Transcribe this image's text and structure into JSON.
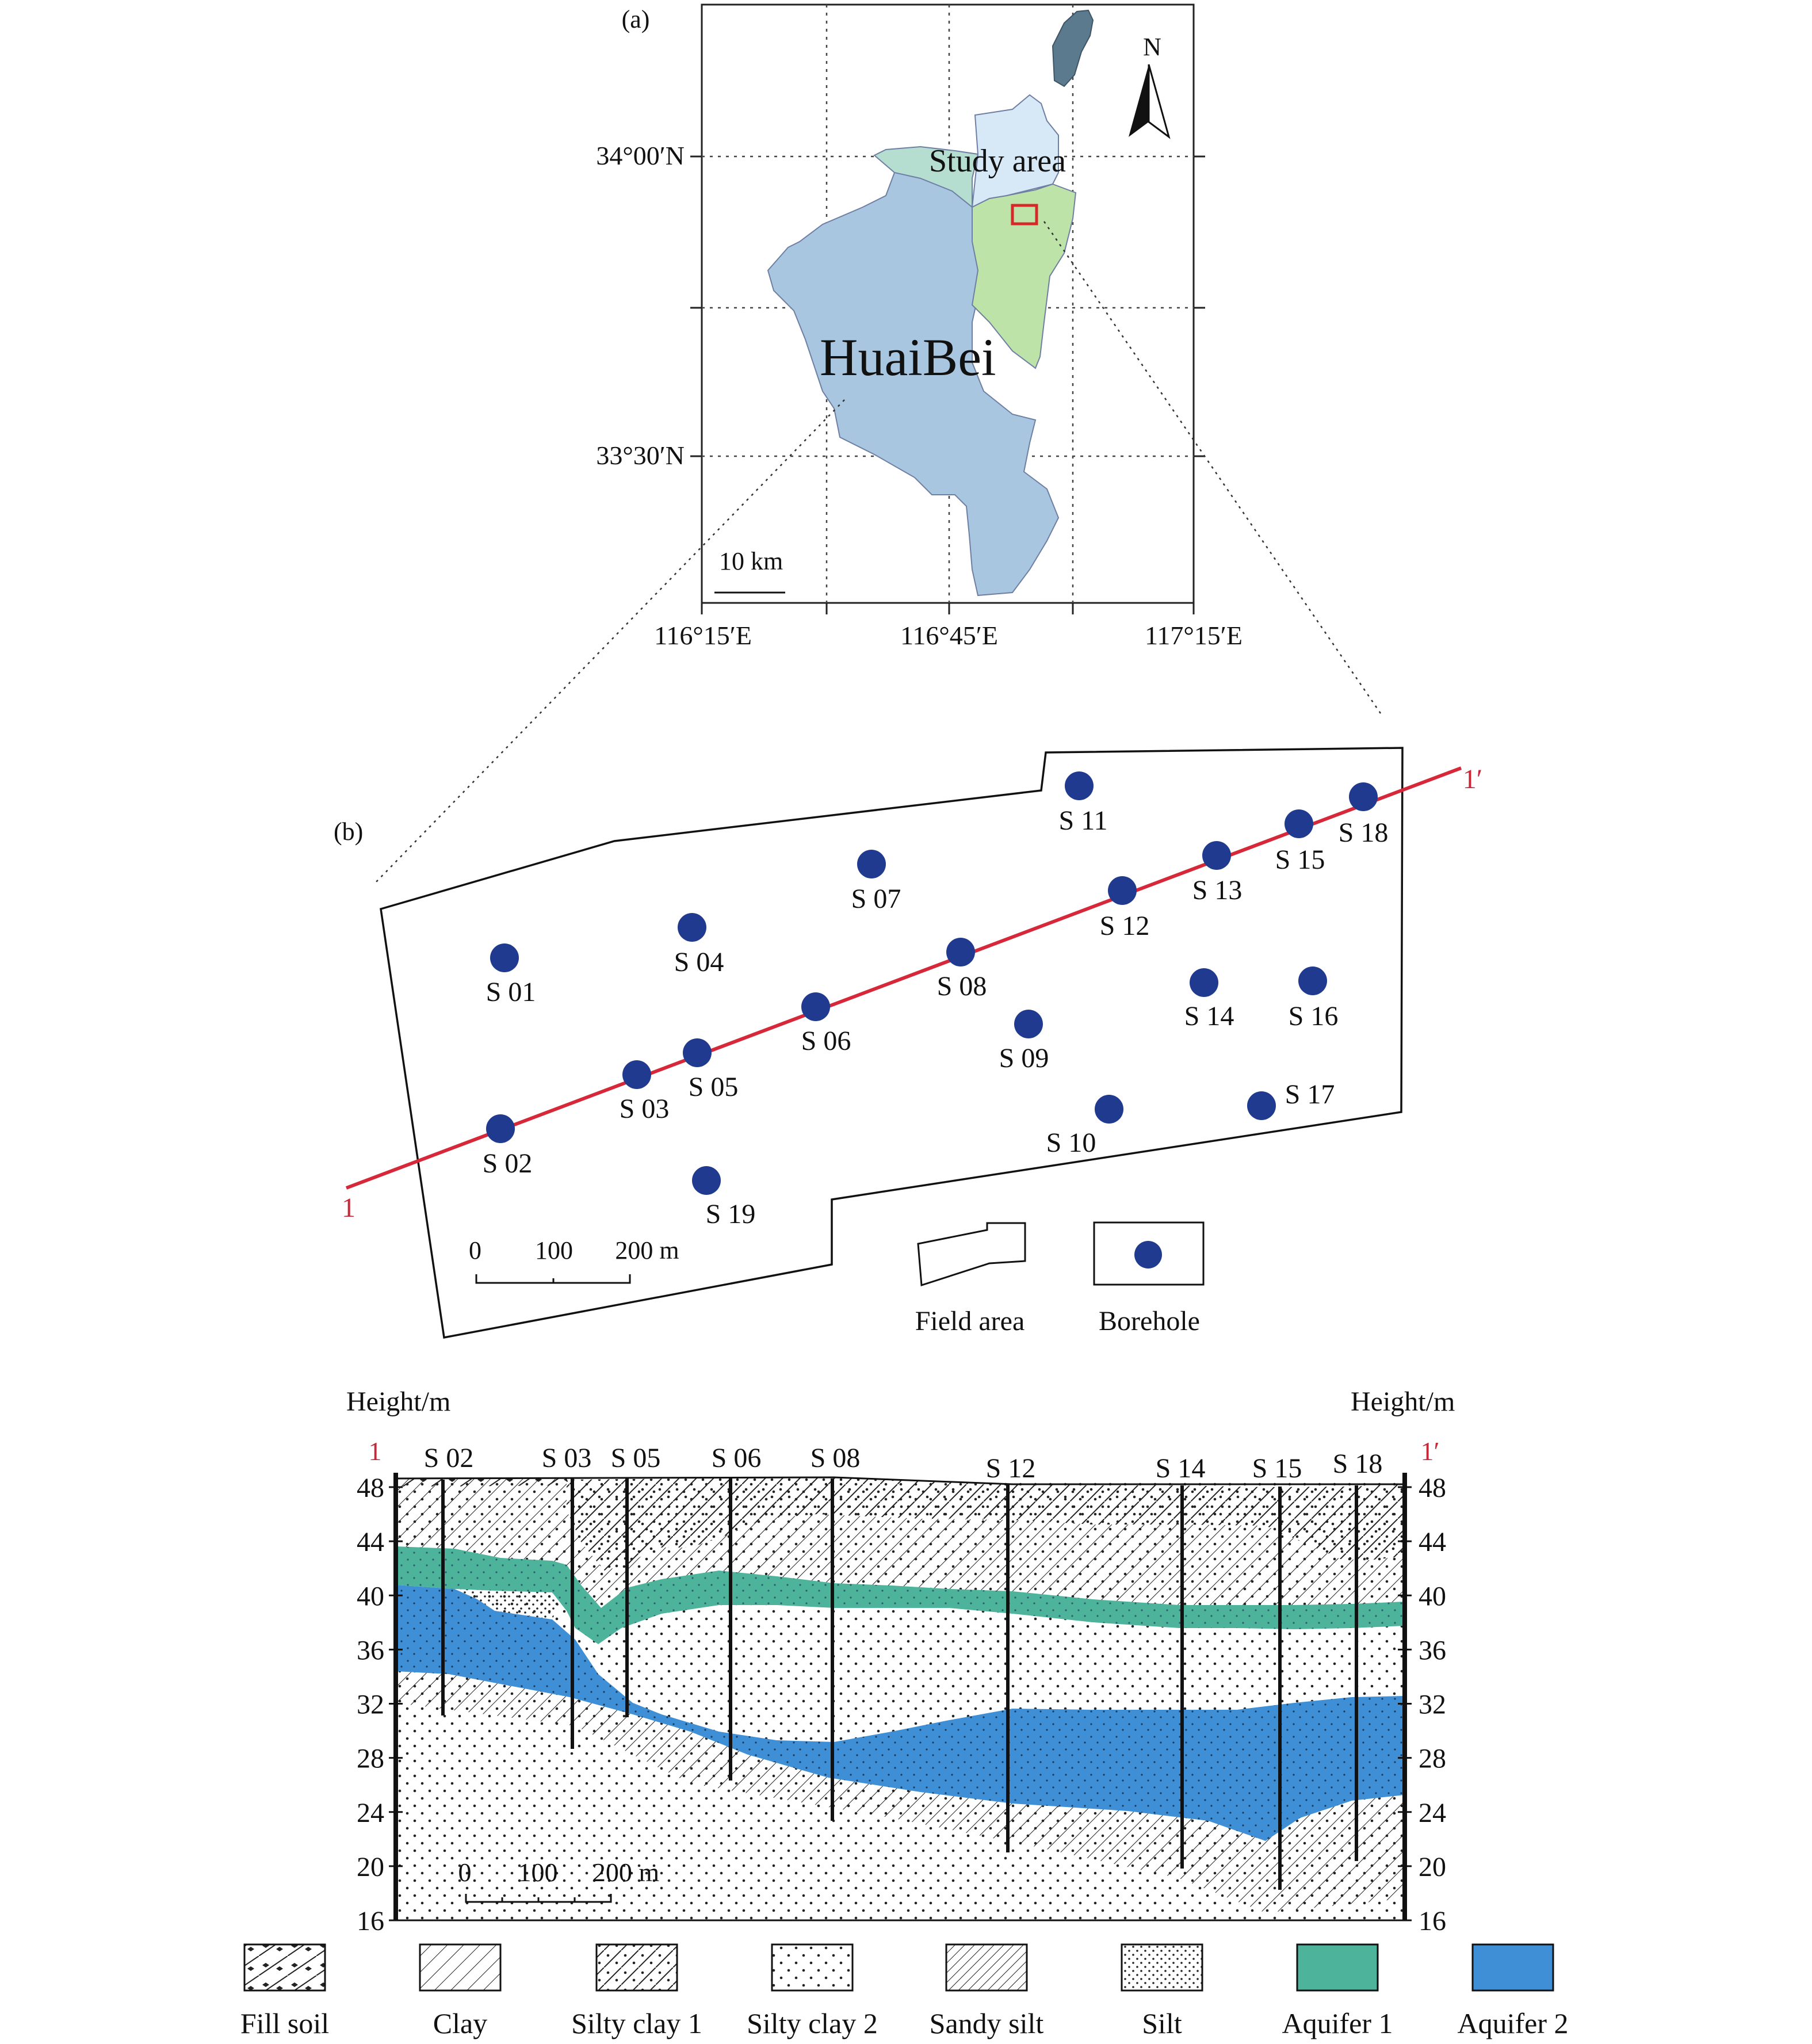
{
  "panel_a": {
    "label": "(a)",
    "lat_labels": [
      "34°00′N",
      "33°30′N"
    ],
    "lon_labels": [
      "116°15′E",
      "116°45′E",
      "117°15′E"
    ],
    "north_label": "N",
    "study_area_label": "Study area",
    "city_label": "HuaiBei",
    "scale_label": "10 km",
    "colors": {
      "city": "#a8c6e0",
      "study_area": "#bde3a8",
      "north_part": "#d7e8f6",
      "northwest_part": "#b5ddd0",
      "inset": "#5c7a8e",
      "marker": "#d62828"
    }
  },
  "panel_b": {
    "label": "(b)",
    "line_start": "1",
    "line_end": "1′",
    "boreholes": [
      {
        "id": "S 01"
      },
      {
        "id": "S 02"
      },
      {
        "id": "S 03"
      },
      {
        "id": "S 04"
      },
      {
        "id": "S 05"
      },
      {
        "id": "S 06"
      },
      {
        "id": "S 07"
      },
      {
        "id": "S 08"
      },
      {
        "id": "S 09"
      },
      {
        "id": "S 10"
      },
      {
        "id": "S 11"
      },
      {
        "id": "S 12"
      },
      {
        "id": "S 13"
      },
      {
        "id": "S 14"
      },
      {
        "id": "S 15"
      },
      {
        "id": "S 16"
      },
      {
        "id": "S 17"
      },
      {
        "id": "S 18"
      },
      {
        "id": "S 19"
      }
    ],
    "scale_ticks": [
      "0",
      "100",
      "200 m"
    ],
    "legend": {
      "field_area": "Field area",
      "borehole": "Borehole"
    },
    "colors": {
      "borehole": "#1f3a8f",
      "section_line": "#d62839"
    }
  },
  "cross_section": {
    "left_axis_title": "Height/m",
    "right_axis_title": "Height/m",
    "left_end": "1",
    "right_end": "1′",
    "axis_ticks": [
      48,
      44,
      40,
      36,
      32,
      28,
      24,
      20,
      16
    ],
    "boreholes": [
      "S 02",
      "S 03",
      "S 05",
      "S 06",
      "S 08",
      "S 12",
      "S 14",
      "S 15",
      "S 18"
    ],
    "scale_ticks": [
      "0",
      "100",
      "200 m"
    ],
    "colors": {
      "aquifer1": "#4db39a",
      "aquifer2": "#3f8fd6"
    }
  },
  "legend": [
    {
      "key": "fill_soil",
      "label": "Fill soil"
    },
    {
      "key": "clay",
      "label": "Clay"
    },
    {
      "key": "silty_clay_1",
      "label": "Silty clay 1"
    },
    {
      "key": "silty_clay_2",
      "label": "Silty clay 2"
    },
    {
      "key": "sandy_silt",
      "label": "Sandy silt"
    },
    {
      "key": "silt",
      "label": "Silt"
    },
    {
      "key": "aquifer_1",
      "label": "Aquifer 1"
    },
    {
      "key": "aquifer_2",
      "label": "Aquifer 2"
    }
  ]
}
